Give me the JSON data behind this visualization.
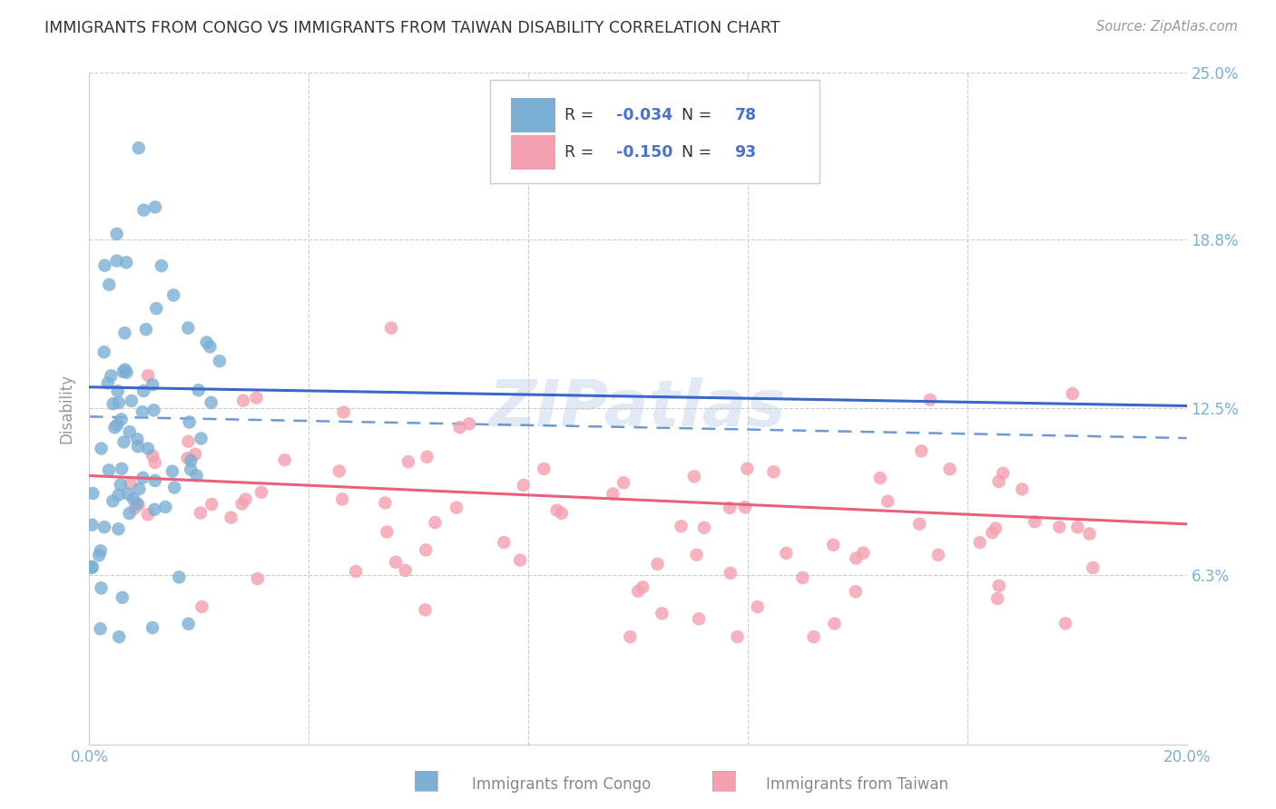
{
  "title": "IMMIGRANTS FROM CONGO VS IMMIGRANTS FROM TAIWAN DISABILITY CORRELATION CHART",
  "source": "Source: ZipAtlas.com",
  "ylabel": "Disability",
  "xlim": [
    0.0,
    0.2
  ],
  "ylim": [
    0.0,
    0.25
  ],
  "ytick_labels": [
    "6.3%",
    "12.5%",
    "18.8%",
    "25.0%"
  ],
  "ytick_values": [
    0.063,
    0.125,
    0.188,
    0.25
  ],
  "xtick_values": [
    0.0,
    0.04,
    0.08,
    0.12,
    0.16,
    0.2
  ],
  "xtick_labels": [
    "0.0%",
    "",
    "",
    "",
    "",
    "20.0%"
  ],
  "congo_color": "#7bafd4",
  "taiwan_color": "#f4a0b0",
  "congo_line_color": "#3a68c8",
  "taiwan_line_color": "#e8607a",
  "dashed_line_color": "#5588cc",
  "legend_text_color": "#4a72cc",
  "r_congo": -0.034,
  "n_congo": 78,
  "r_taiwan": -0.15,
  "n_taiwan": 93,
  "watermark": "ZIPatlas",
  "background_color": "#ffffff",
  "grid_color": "#cccccc",
  "title_color": "#333333",
  "axis_tick_color": "#7bafd4",
  "ylabel_color": "#999999",
  "congo_line_start_y": 0.133,
  "congo_line_end_y": 0.126,
  "taiwan_line_start_y": 0.1,
  "taiwan_line_end_y": 0.082,
  "dashed_line_start_y": 0.122,
  "dashed_line_end_y": 0.114
}
